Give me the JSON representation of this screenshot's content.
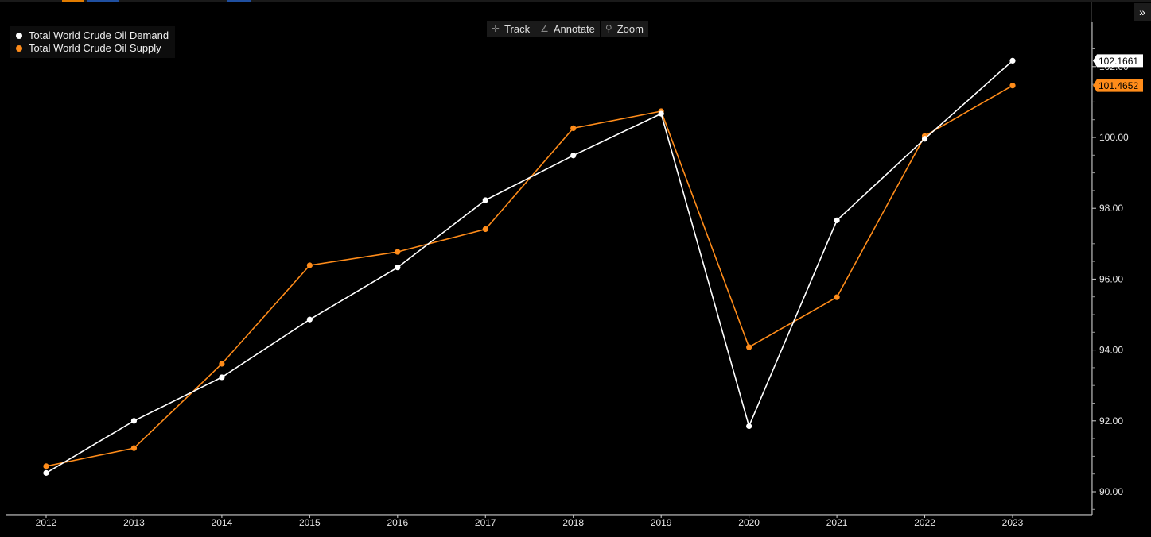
{
  "toolbar": {
    "track_label": "Track",
    "annotate_label": "Annotate",
    "zoom_label": "Zoom",
    "collapse_icon": "double-chevron-right-icon"
  },
  "colors": {
    "demand": "#ffffff",
    "supply": "#ff8c1a",
    "background": "#000000"
  },
  "chart_data": {
    "type": "line",
    "title": "",
    "xlabel": "",
    "ylabel": "",
    "x": [
      "2012",
      "2013",
      "2014",
      "2015",
      "2016",
      "2017",
      "2018",
      "2019",
      "2020",
      "2021",
      "2022",
      "2023"
    ],
    "ylim": [
      89.5,
      102.9
    ],
    "yticks": [
      "90.00",
      "92.00",
      "94.00",
      "96.00",
      "98.00",
      "100.00",
      "102.00"
    ],
    "grid": false,
    "legend_position": "top-left",
    "series": [
      {
        "name": "Total World Crude Oil Demand",
        "color": "#ffffff",
        "values": [
          90.53,
          92.0,
          93.23,
          94.86,
          96.33,
          98.23,
          99.49,
          100.67,
          91.85,
          97.66,
          99.96,
          102.1661
        ],
        "last_label": "102.1661"
      },
      {
        "name": "Total World Crude Oil Supply",
        "color": "#ff8c1a",
        "values": [
          90.72,
          91.23,
          93.61,
          96.39,
          96.77,
          97.41,
          100.26,
          100.74,
          94.08,
          95.49,
          100.04,
          101.4652
        ],
        "last_label": "101.4652"
      }
    ]
  }
}
